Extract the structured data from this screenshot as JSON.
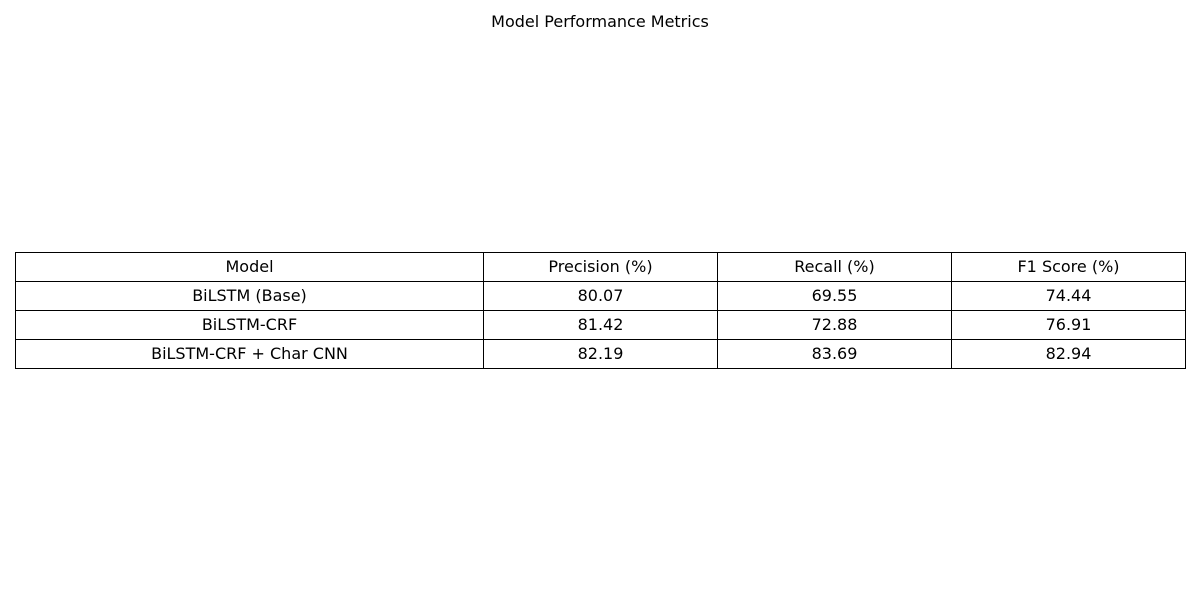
{
  "chart_data": {
    "type": "table",
    "title": "Model Performance Metrics",
    "columns": [
      "Model",
      "Precision (%)",
      "Recall (%)",
      "F1 Score (%)"
    ],
    "rows": [
      [
        "BiLSTM (Base)",
        "80.07",
        "69.55",
        "74.44"
      ],
      [
        "BiLSTM-CRF",
        "81.42",
        "72.88",
        "76.91"
      ],
      [
        "BiLSTM-CRF + Char CNN",
        "82.19",
        "83.69",
        "82.94"
      ]
    ]
  }
}
